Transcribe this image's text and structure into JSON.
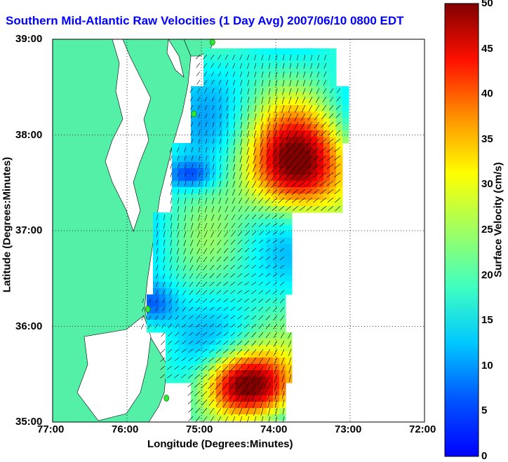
{
  "title": "Southern Mid-Atlantic Raw Velocities (1 Day Avg) 2007/06/10 0800 EDT",
  "axes": {
    "xlabel": "Longitude (Degrees:Minutes)",
    "ylabel": "Latitude (Degrees:Minutes)",
    "x_ticks": [
      "77:00",
      "76:00",
      "75:00",
      "74:00",
      "73:00",
      "72:00"
    ],
    "y_ticks": [
      "39:00",
      "38:00",
      "37:00",
      "36:00",
      "35:00"
    ],
    "x_range": [
      -77,
      -72
    ],
    "y_range": [
      35,
      39
    ],
    "grid": "dotted"
  },
  "colorbar": {
    "label": "Surface Velocity (cm/s)",
    "ticks": [
      "0",
      "5",
      "10",
      "15",
      "20",
      "25",
      "30",
      "35",
      "40",
      "45",
      "50"
    ],
    "range": [
      0,
      50
    ],
    "colormap": "jet"
  },
  "colors": {
    "land": "#55f0a8",
    "title": "#0000ff",
    "station": "#33e633",
    "vector": "#000000"
  },
  "stations": [
    {
      "lon": -74.85,
      "lat": 38.97
    },
    {
      "lon": -75.1,
      "lat": 38.22
    },
    {
      "lon": -75.72,
      "lat": 36.18
    },
    {
      "lon": -75.47,
      "lat": 35.25
    }
  ]
}
